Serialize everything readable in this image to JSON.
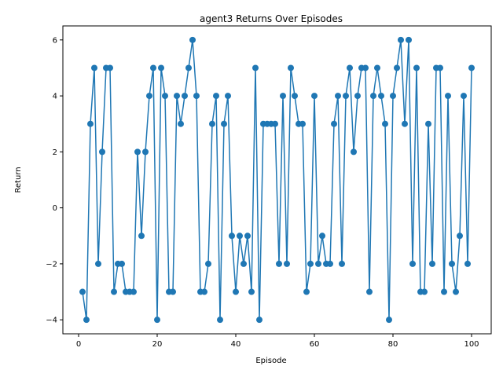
{
  "chart_data": {
    "type": "line",
    "title": "agent3 Returns Over Episodes",
    "xlabel": "Episode",
    "ylabel": "Return",
    "xlim": [
      -4,
      105
    ],
    "ylim": [
      -4.5,
      6.5
    ],
    "xticks": [
      0,
      20,
      40,
      60,
      80,
      100
    ],
    "yticks": [
      -4,
      -2,
      0,
      2,
      4,
      6
    ],
    "grid": false,
    "marker": "circle",
    "color": "#1f77b4",
    "series": [
      {
        "x": [
          1,
          2,
          3,
          4,
          5,
          6,
          7,
          8,
          9,
          10,
          11,
          12,
          13,
          14,
          15,
          16,
          17,
          18,
          19,
          20,
          21,
          22,
          23,
          24,
          25,
          26,
          27,
          28,
          29,
          30,
          31,
          32,
          33,
          34,
          35,
          36,
          37,
          38,
          39,
          40,
          41,
          42,
          43,
          44,
          45,
          46,
          47,
          48,
          49,
          50,
          51,
          52,
          53,
          54,
          55,
          56,
          57,
          58,
          59,
          60,
          61,
          62,
          63,
          64,
          65,
          66,
          67,
          68,
          69,
          70,
          71,
          72,
          73,
          74,
          75,
          76,
          77,
          78,
          79,
          80,
          81,
          82,
          83,
          84,
          85,
          86,
          87,
          88,
          89,
          90,
          91,
          92,
          93,
          94,
          95,
          96,
          97,
          98,
          99,
          100
        ],
        "y": [
          -3,
          -4,
          3,
          5,
          -2,
          2,
          5,
          5,
          -3,
          -2,
          -2,
          -3,
          -3,
          -3,
          2,
          -1,
          2,
          4,
          5,
          -4,
          5,
          4,
          -3,
          -3,
          4,
          3,
          4,
          5,
          6,
          4,
          -3,
          -3,
          -2,
          3,
          4,
          -4,
          3,
          4,
          -1,
          -3,
          -1,
          -2,
          -1,
          -3,
          5,
          -4,
          3,
          3,
          3,
          3,
          -2,
          4,
          -2,
          5,
          4,
          3,
          3,
          -3,
          -2,
          4,
          -2,
          -1,
          -2,
          -2,
          3,
          4,
          -2,
          4,
          5,
          2,
          4,
          5,
          5,
          -3,
          4,
          5,
          4,
          3,
          -4,
          4,
          5,
          6,
          3,
          6,
          -2,
          5,
          -3,
          -3,
          3,
          -2,
          5,
          5,
          -3,
          4,
          -2,
          -3,
          -1,
          4,
          -2,
          5
        ]
      }
    ]
  }
}
